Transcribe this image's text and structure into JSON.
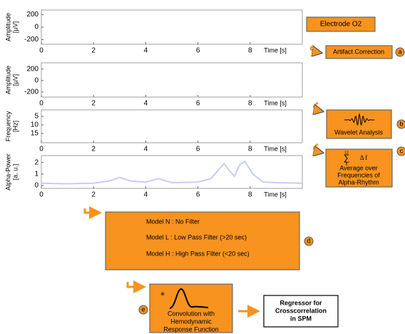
{
  "panels": [
    {
      "ylabel": [
        "Amplitude",
        "[µV]"
      ],
      "ylim": [
        -275,
        275
      ],
      "yticks": [
        200,
        0,
        -200
      ],
      "xlim": [
        0,
        10
      ],
      "xticks": [
        0,
        2,
        4,
        6,
        8
      ],
      "xlabel": "Time [s]"
    },
    {
      "ylabel": [
        "Amplitude",
        "[µV]"
      ],
      "ylim": [
        -290,
        310
      ],
      "yticks": [
        200,
        0,
        -200
      ],
      "xlim": [
        0,
        10
      ],
      "xticks": [
        0,
        2,
        4,
        6,
        8
      ],
      "xlabel": "Time [s]"
    },
    {
      "ylabel": [
        "Frequency",
        "[Hz]"
      ],
      "ylim": [
        20.4,
        1.25
      ],
      "yticks": [
        5,
        10,
        15
      ],
      "xlim": [
        0,
        10
      ],
      "xticks": [
        0,
        2,
        4,
        6,
        8
      ],
      "xlabel": "Time [s]"
    },
    {
      "ylabel": [
        "Alpha-Power",
        "[a. u.]"
      ],
      "ylim": [
        -0.25,
        2.6
      ],
      "yticks": [
        2,
        1,
        0
      ],
      "xlim": [
        0,
        10
      ],
      "xticks": [
        0,
        2,
        4,
        6,
        8
      ],
      "xlabel": "Time [s]",
      "x": [
        0,
        1,
        2,
        2.6,
        3,
        3.4,
        4,
        4.5,
        5,
        6,
        6.5,
        6.8,
        7,
        7.2,
        7.4,
        7.6,
        7.8,
        8.1,
        8.5,
        9,
        10
      ],
      "values": [
        0.2,
        0.15,
        0.2,
        0.4,
        0.7,
        0.4,
        0.3,
        0.6,
        0.25,
        0.3,
        0.6,
        1.4,
        1.9,
        1.3,
        0.8,
        1.8,
        2.1,
        1.0,
        0.3,
        0.25,
        0.2
      ]
    }
  ],
  "steps": {
    "electrode": "Electrode O2",
    "artifact": {
      "label": "Artifact Correction",
      "marker": "a"
    },
    "wavelet": {
      "label": "Wavelet Analysis",
      "marker": "b"
    },
    "average": {
      "upper": "12",
      "sum": "∑",
      "lower": "8",
      "delta": "Δ  f",
      "lines": [
        "Average  over",
        "Frequencies of",
        "Alpha-Rhythm"
      ],
      "marker": "c"
    },
    "models": {
      "lines": [
        "Model N : No Filter",
        "Model L : Low Pass Filter (>20 sec)",
        "Model H : High Pass Filter (<20 sec)"
      ],
      "marker": "d"
    },
    "convolution": {
      "symbol": "⊗",
      "lines": [
        "Convolution with",
        "Hemodynamic",
        "Response Function"
      ],
      "marker": "e"
    },
    "regressor": [
      "Regressor for",
      "Crosscorrelation",
      "in SPM"
    ]
  }
}
